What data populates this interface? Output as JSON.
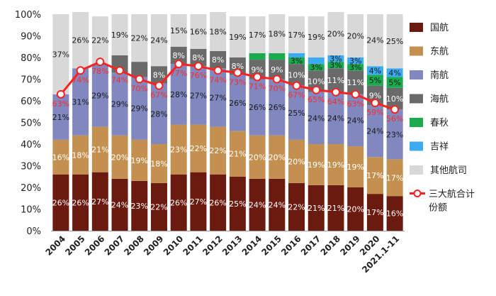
{
  "chart_data": {
    "type": "bar",
    "stacked": true,
    "title": "",
    "xlabel": "",
    "ylabel": "",
    "ylim": [
      0,
      100
    ],
    "y_ticks": [
      "0%",
      "10%",
      "20%",
      "30%",
      "40%",
      "50%",
      "60%",
      "70%",
      "80%",
      "90%",
      "100%"
    ],
    "categories": [
      "2004",
      "2005",
      "2006",
      "2007",
      "2008",
      "2009",
      "2010",
      "2011",
      "2012",
      "2013",
      "2014",
      "2015",
      "2016",
      "2017",
      "2018",
      "2019",
      "2020",
      "2021.1-11"
    ],
    "series": [
      {
        "name": "国航",
        "color": "#6b1a10",
        "label_color": "#ffffff",
        "values": [
          26,
          26,
          27,
          24,
          23,
          22,
          26,
          27,
          26,
          25,
          24,
          24,
          22,
          21,
          21,
          20,
          17,
          16
        ],
        "labels": [
          "26%",
          "26%",
          "27%",
          "24%",
          "23%",
          "22%",
          "26%",
          "27%",
          "26%",
          "25%",
          "24%",
          "24%",
          "22%",
          "21%",
          "21%",
          "20%",
          "17%",
          "16%"
        ]
      },
      {
        "name": "东航",
        "color": "#c3904f",
        "label_color": "#ffffff",
        "values": [
          16,
          18,
          21,
          20,
          19,
          18,
          23,
          22,
          22,
          21,
          20,
          20,
          20,
          19,
          19,
          19,
          17,
          17
        ],
        "labels": [
          "16%",
          "18%",
          "21%",
          "20%",
          "19%",
          "18%",
          "23%",
          "22%",
          "22%",
          "21%",
          "20%",
          "20%",
          "20%",
          "19%",
          "19%",
          "19%",
          "17%",
          "17%"
        ]
      },
      {
        "name": "南航",
        "color": "#8088bf",
        "label_color": "#1a1a1a",
        "values": [
          21,
          31,
          29,
          29,
          29,
          28,
          28,
          27,
          27,
          26,
          26,
          26,
          25,
          24,
          24,
          24,
          24,
          23
        ],
        "labels": [
          "21%",
          "31%",
          "29%",
          "29%",
          "29%",
          "28%",
          "28%",
          "27%",
          "27%",
          "26%",
          "26%",
          "26%",
          "25%",
          "24%",
          "24%",
          "24%",
          "24%",
          "23%"
        ]
      },
      {
        "name": "海航",
        "color": "#6a6a6a",
        "label_color": "#ffffff",
        "values": [
          0,
          0,
          0,
          8,
          7,
          8,
          8,
          8,
          8,
          8,
          9,
          9,
          10,
          10,
          11,
          11,
          9,
          10
        ],
        "labels": [
          "",
          "",
          "",
          "",
          "",
          "8%",
          "8%",
          "8%",
          "8%",
          "8%",
          "9%",
          "9%",
          "10%",
          "10%",
          "11%",
          "11%",
          "9%",
          "10%"
        ]
      },
      {
        "name": "春秋",
        "color": "#1aab4e",
        "label_color": "#1a1a1a",
        "values": [
          0,
          0,
          0,
          0,
          0,
          0,
          0,
          0,
          0,
          0,
          3,
          3,
          3,
          3,
          3,
          3,
          5,
          5
        ],
        "labels": [
          "",
          "",
          "",
          "",
          "",
          "",
          "",
          "",
          "",
          "",
          "",
          "",
          "3%",
          "3%",
          "3%",
          "3%",
          "5%",
          "5%"
        ]
      },
      {
        "name": "吉祥",
        "color": "#3cabf2",
        "label_color": "#1a1a1a",
        "values": [
          0,
          0,
          0,
          0,
          0,
          0,
          0,
          0,
          0,
          0,
          0,
          0,
          2,
          3,
          3,
          3,
          4,
          4
        ],
        "labels": [
          "",
          "",
          "",
          "",
          "",
          "",
          "",
          "",
          "",
          "",
          "",
          "",
          "",
          "",
          "3%",
          "3%",
          "4%",
          "4%"
        ]
      },
      {
        "name": "其他航司",
        "color": "#d8d8d8",
        "label_color": "#1a1a1a",
        "values": [
          37,
          26,
          22,
          19,
          22,
          24,
          15,
          16,
          18,
          19,
          17,
          18,
          17,
          19,
          20,
          20,
          24,
          25
        ],
        "labels": [
          "37%",
          "26%",
          "22%",
          "19%",
          "22%",
          "24%",
          "15%",
          "16%",
          "18%",
          "19%",
          "17%",
          "18%",
          "17%",
          "19%",
          "20%",
          "20%",
          "24%",
          "25%"
        ]
      }
    ],
    "line_series": {
      "name": "三大航合计份额",
      "color": "#ff2020",
      "values": [
        63,
        74,
        78,
        74,
        70,
        67,
        77,
        76,
        74,
        73,
        71,
        70,
        67,
        65,
        64,
        63,
        59,
        56
      ],
      "labels": [
        "63%",
        "74%",
        "78%",
        "74%",
        "70%",
        "67%",
        "77%",
        "76%",
        "74%",
        "73%",
        "71%",
        "70%",
        "67%",
        "65%",
        "64%",
        "63%",
        "59%",
        "56%"
      ]
    },
    "legend_position": "right"
  }
}
